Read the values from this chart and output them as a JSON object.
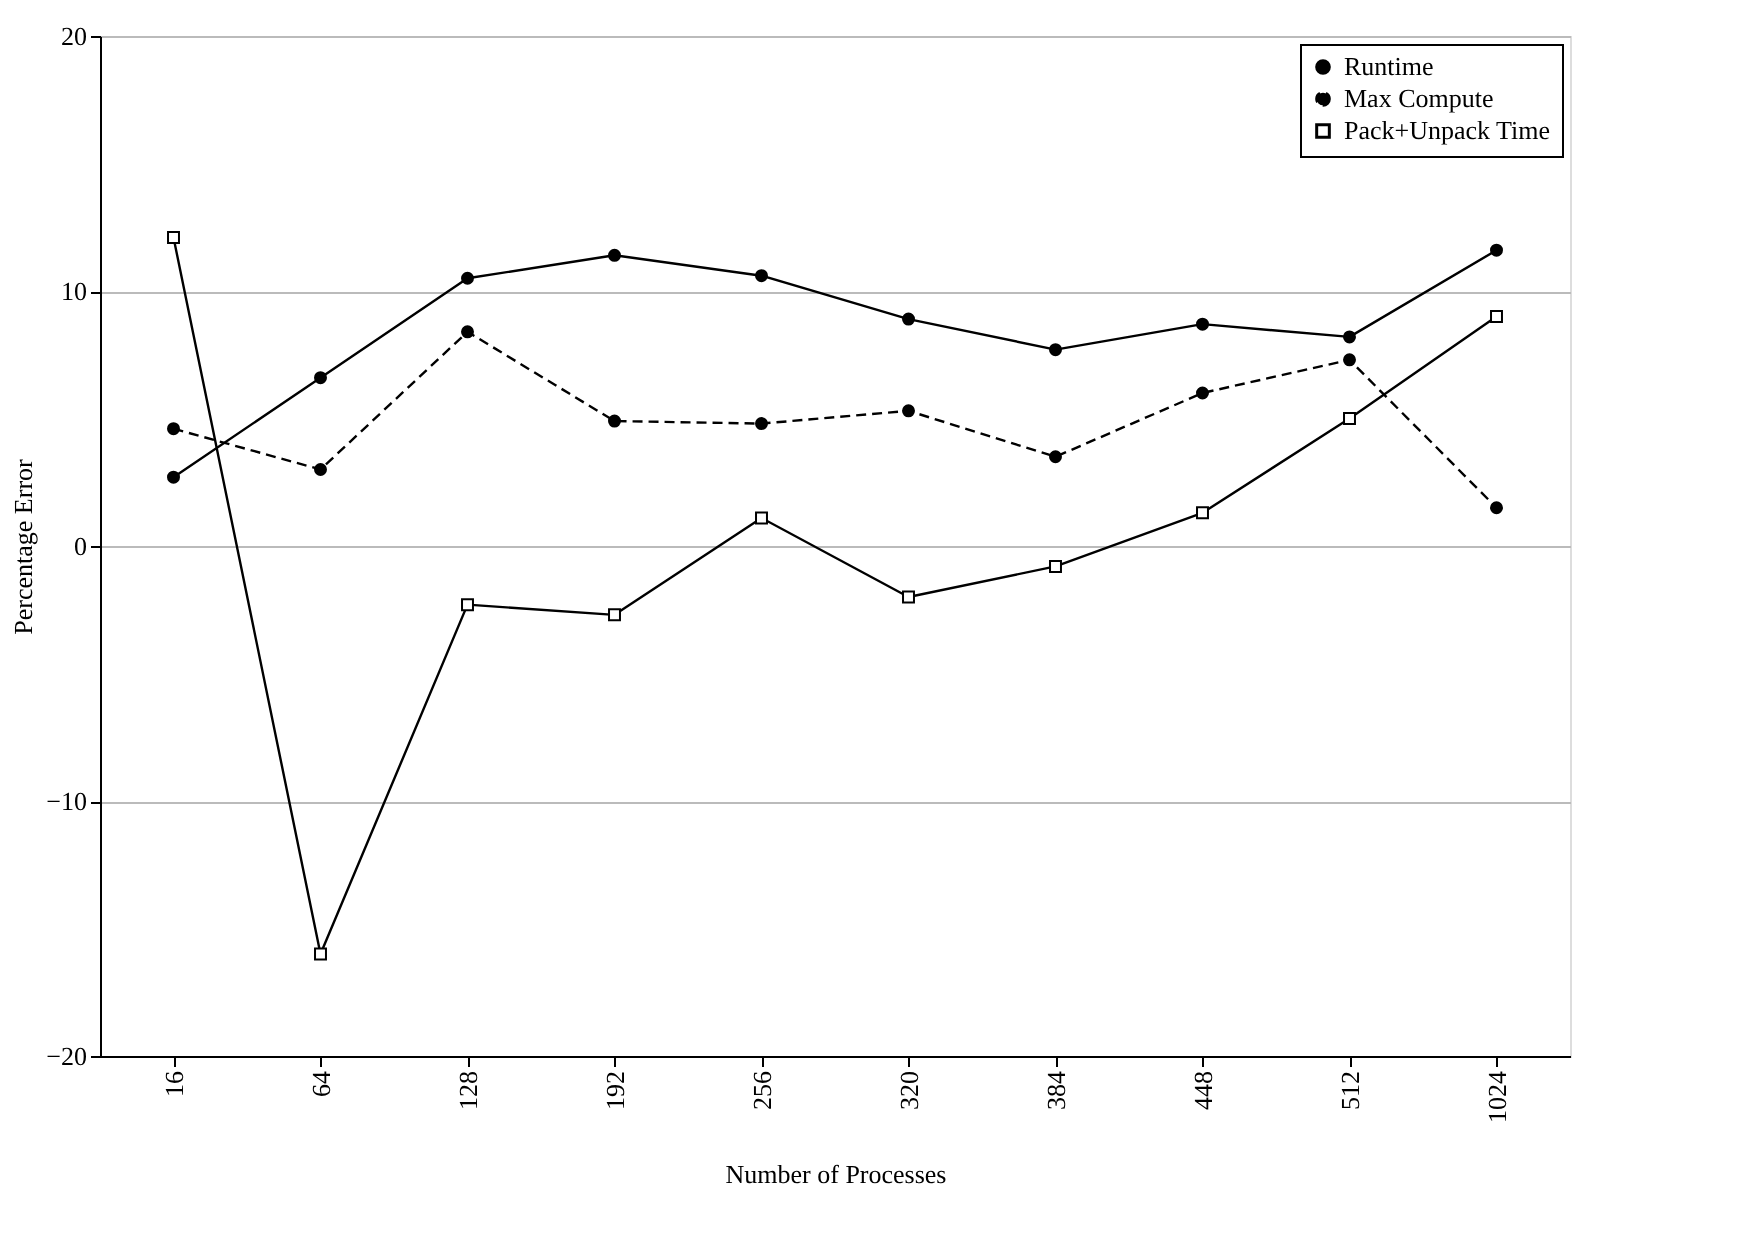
{
  "chart_data": {
    "type": "line",
    "xlabel": "Number of Processes",
    "ylabel": "Percentage Error",
    "categories": [
      "16",
      "64",
      "128",
      "192",
      "256",
      "320",
      "384",
      "448",
      "512",
      "1024"
    ],
    "ylim": [
      -20,
      20
    ],
    "yticks": [
      -20,
      -10,
      0,
      10,
      20
    ],
    "grid": "y",
    "legend": "top right",
    "series": [
      {
        "name": "Runtime",
        "color": "#000000",
        "marker": "circle",
        "line_style": "solid",
        "values": [
          2.7,
          6.6,
          10.5,
          11.4,
          10.6,
          8.9,
          7.7,
          8.7,
          8.2,
          11.6
        ]
      },
      {
        "name": "Max Compute",
        "color": "#000000",
        "marker": "circle",
        "line_style": "dashed",
        "values": [
          4.6,
          3.0,
          8.4,
          4.9,
          4.8,
          5.3,
          3.5,
          6.0,
          7.3,
          1.5
        ]
      },
      {
        "name": "Pack+Unpack Time",
        "color": "#000000",
        "marker": "square",
        "line_style": "solid",
        "values": [
          12.1,
          -16.0,
          -2.3,
          -2.7,
          1.1,
          -2.0,
          -0.8,
          1.3,
          5.0,
          9.0
        ]
      }
    ]
  }
}
